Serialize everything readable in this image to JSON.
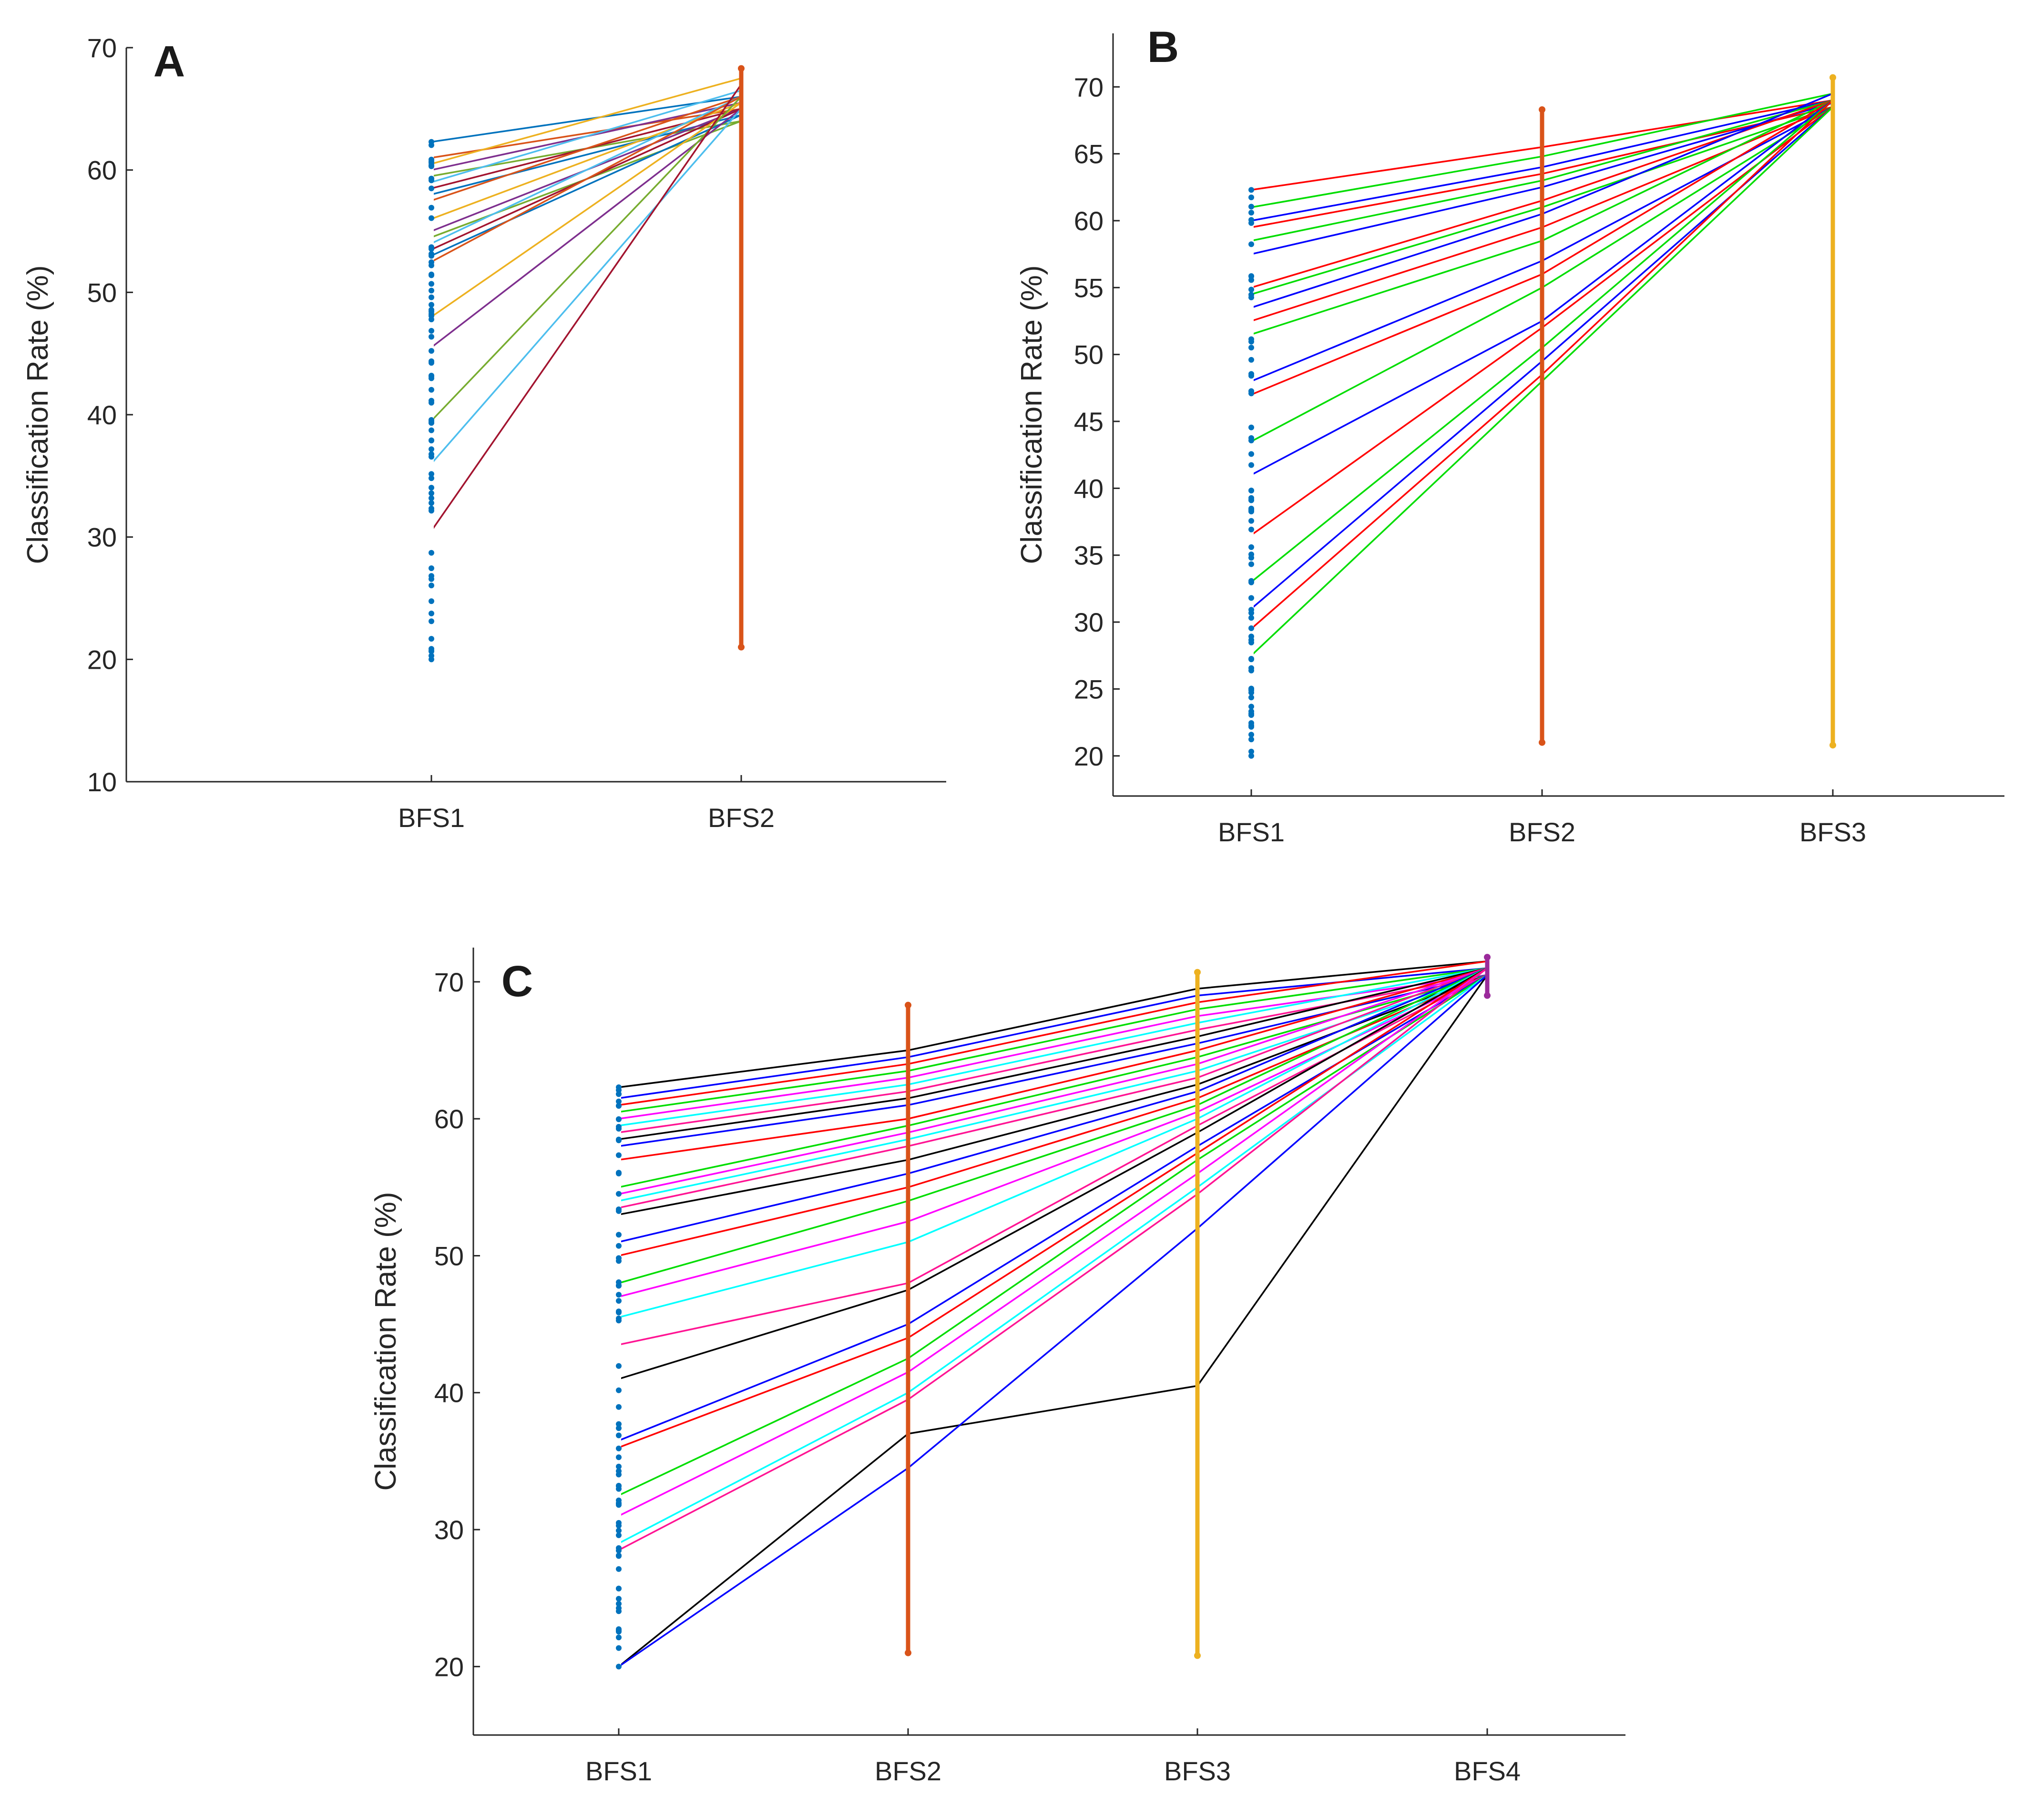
{
  "colors": {
    "bfs1": "#0072BD",
    "bfs2": "#D95319",
    "bfs3": "#EDB120",
    "bfs4": "#9B2A9B",
    "palette_A": [
      "#0072BD",
      "#D95319",
      "#EDB120",
      "#7E2F8E",
      "#77AC30",
      "#4DBEEE",
      "#A2142F"
    ],
    "palette_B": [
      "#FF0000",
      "#00DD00",
      "#0000FF"
    ],
    "palette_C": [
      "#000000",
      "#0000FF",
      "#FF0000",
      "#00DD00",
      "#FF00FF",
      "#00FFFF",
      "#FF1493"
    ]
  },
  "chart_data": [
    {
      "type": "line",
      "panel_label": "A",
      "ylabel": "Classification Rate (%)",
      "categories": [
        "BFS1",
        "BFS2"
      ],
      "ylim": [
        10,
        70
      ],
      "yticks": [
        10,
        20,
        30,
        40,
        50,
        60,
        70
      ],
      "yrange_at_categories": [
        [
          20,
          62.3
        ],
        [
          21,
          68.3
        ]
      ],
      "lines_from_to": [
        [
          62.3,
          66
        ],
        [
          61,
          65
        ],
        [
          60.5,
          67.5
        ],
        [
          60,
          65.5
        ],
        [
          59.5,
          64
        ],
        [
          59,
          66.5
        ],
        [
          58.5,
          65
        ],
        [
          58,
          64.5
        ],
        [
          57.5,
          66
        ],
        [
          56,
          65.5
        ],
        [
          55,
          65
        ],
        [
          54.5,
          64
        ],
        [
          54,
          66
        ],
        [
          53.5,
          65
        ],
        [
          53,
          64.5
        ],
        [
          52.5,
          66
        ],
        [
          48,
          65.5
        ],
        [
          45.5,
          65
        ],
        [
          39.5,
          66
        ],
        [
          36,
          65
        ],
        [
          30.5,
          67
        ]
      ]
    },
    {
      "type": "line",
      "panel_label": "B",
      "ylabel": "Classification Rate (%)",
      "categories": [
        "BFS1",
        "BFS2",
        "BFS3"
      ],
      "ylim": [
        17,
        74
      ],
      "yticks": [
        20,
        25,
        30,
        35,
        40,
        45,
        50,
        55,
        60,
        65,
        70
      ],
      "yrange_at_categories": [
        [
          20,
          62.3
        ],
        [
          21,
          68.3
        ],
        [
          20.8,
          70.7
        ]
      ],
      "lines_from_to": [
        [
          62.3,
          65.5,
          69
        ],
        [
          61,
          64.8,
          69.5
        ],
        [
          60,
          64,
          69
        ],
        [
          59.5,
          63.5,
          68.5
        ],
        [
          58.5,
          63,
          69
        ],
        [
          57.5,
          62.5,
          68.8
        ],
        [
          55,
          61.5,
          69
        ],
        [
          54.5,
          61,
          68.5
        ],
        [
          53.5,
          60.5,
          69.5
        ],
        [
          52.5,
          59.5,
          68.5
        ],
        [
          51.5,
          58.5,
          69
        ],
        [
          48,
          57,
          68.5
        ],
        [
          47,
          56,
          69
        ],
        [
          43.5,
          55,
          68.5
        ],
        [
          41,
          52.5,
          69
        ],
        [
          36.5,
          52,
          68.5
        ],
        [
          33,
          50.5,
          69
        ],
        [
          31,
          49.5,
          68.5
        ],
        [
          29.5,
          48.5,
          69
        ],
        [
          27.5,
          48,
          68.5
        ]
      ]
    },
    {
      "type": "line",
      "panel_label": "C",
      "ylabel": "Classification Rate (%)",
      "categories": [
        "BFS1",
        "BFS2",
        "BFS3",
        "BFS4"
      ],
      "ylim": [
        15,
        72.5
      ],
      "yticks": [
        20,
        30,
        40,
        50,
        60,
        70
      ],
      "yrange_at_categories": [
        [
          20,
          62.3
        ],
        [
          21,
          68.3
        ],
        [
          20.8,
          70.7
        ],
        [
          69,
          71.8
        ]
      ],
      "lines_from_to": [
        [
          62.3,
          65,
          69.5,
          71.5
        ],
        [
          61.5,
          64.5,
          69,
          71
        ],
        [
          61,
          64,
          68.5,
          71.5
        ],
        [
          60.5,
          63.5,
          68,
          71
        ],
        [
          60,
          63,
          67.5,
          70.5
        ],
        [
          59.5,
          62.5,
          67,
          71
        ],
        [
          59,
          62,
          66.5,
          70.5
        ],
        [
          58.5,
          61.5,
          66,
          71
        ],
        [
          58,
          61,
          65.5,
          70.5
        ],
        [
          57,
          60,
          65,
          71
        ],
        [
          55,
          59.5,
          64.5,
          70.5
        ],
        [
          54.5,
          59,
          64,
          71
        ],
        [
          54,
          58.5,
          63.5,
          70.5
        ],
        [
          53.5,
          58,
          63,
          71
        ],
        [
          53,
          57,
          62.5,
          70.5
        ],
        [
          51,
          56,
          62,
          71
        ],
        [
          50,
          55,
          61.5,
          70.5
        ],
        [
          48,
          54,
          61,
          71
        ],
        [
          47,
          52.5,
          60.5,
          70.5
        ],
        [
          45.5,
          51,
          60,
          71
        ],
        [
          43.5,
          48,
          59.5,
          70.5
        ],
        [
          41,
          47.5,
          59,
          71
        ],
        [
          36.5,
          45,
          58,
          70.5
        ],
        [
          36,
          44,
          57.5,
          71
        ],
        [
          32.5,
          42.5,
          57,
          70.5
        ],
        [
          31,
          41.5,
          56,
          71
        ],
        [
          29,
          40,
          55,
          70.5
        ],
        [
          28.5,
          39.5,
          54.5,
          71
        ],
        [
          20,
          37,
          40.5,
          70.5
        ],
        [
          20,
          34.5,
          52,
          70.5
        ]
      ]
    }
  ]
}
